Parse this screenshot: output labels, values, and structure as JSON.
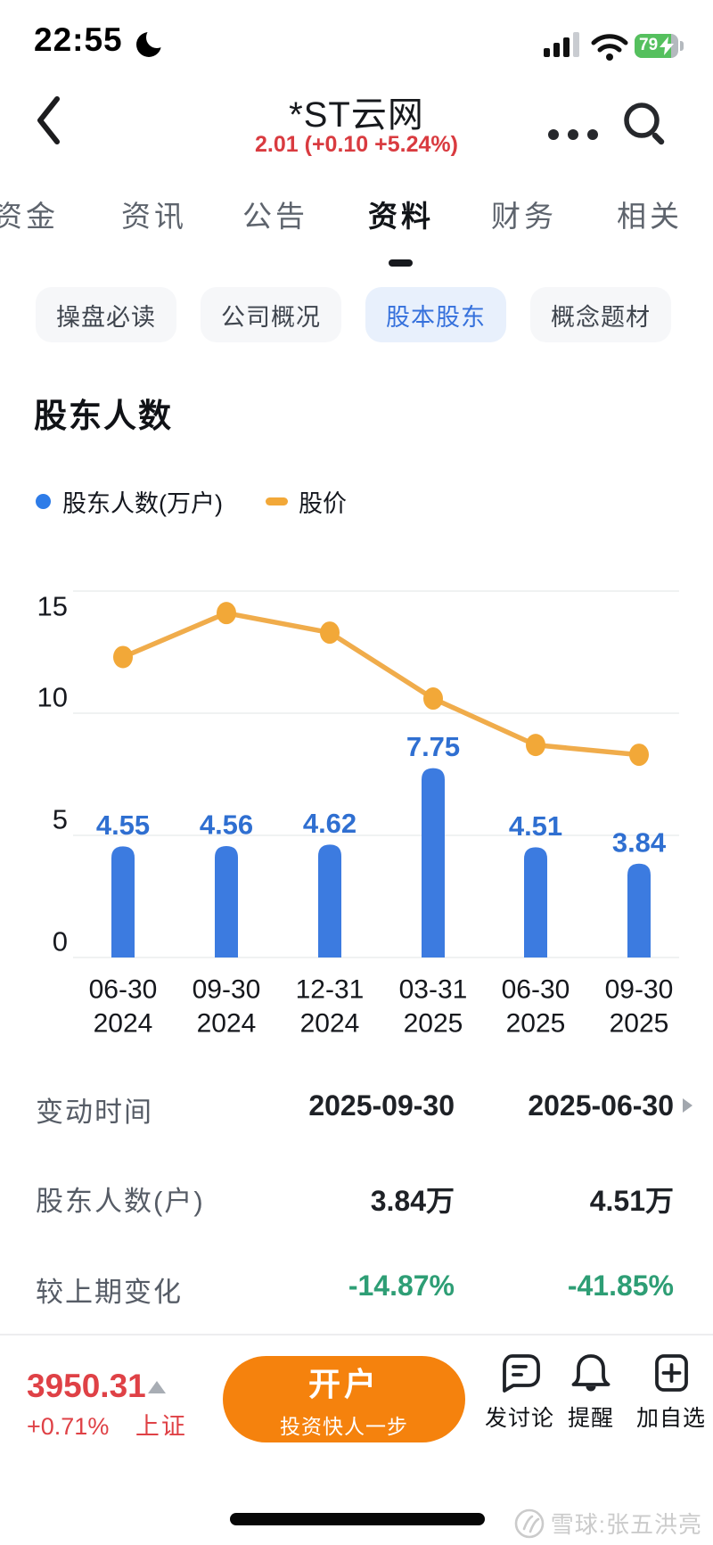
{
  "status_bar": {
    "time": "22:55",
    "battery": "79"
  },
  "header": {
    "title": "*ST云网",
    "quote": "2.01 (+0.10 +5.24%)"
  },
  "tabs": {
    "items": [
      {
        "label": "资金"
      },
      {
        "label": "资讯"
      },
      {
        "label": "公告"
      },
      {
        "label": "资料"
      },
      {
        "label": "财务"
      },
      {
        "label": "相关"
      }
    ],
    "active": "资料"
  },
  "subtabs": {
    "items": [
      {
        "label": "操盘必读"
      },
      {
        "label": "公司概况"
      },
      {
        "label": "股本股东"
      },
      {
        "label": "概念题材"
      }
    ],
    "active": "股本股东"
  },
  "section_title": "股东人数",
  "chart_data": {
    "type": "bar",
    "title": "股东人数",
    "categories": [
      "06-30 2024",
      "09-30 2024",
      "12-31 2024",
      "03-31 2025",
      "06-30 2025",
      "09-30 2025"
    ],
    "categories_lines": [
      [
        "06-30",
        "2024"
      ],
      [
        "09-30",
        "2024"
      ],
      [
        "12-31",
        "2024"
      ],
      [
        "03-31",
        "2025"
      ],
      [
        "06-30",
        "2025"
      ],
      [
        "09-30",
        "2025"
      ]
    ],
    "series": [
      {
        "name": "股东人数(万户)",
        "type": "bar",
        "values": [
          4.55,
          4.56,
          4.62,
          7.75,
          4.51,
          3.84
        ],
        "color": "#3C7BE0",
        "label_color": "#2F6FD1"
      },
      {
        "name": "股价",
        "type": "line",
        "values": [
          12.3,
          14.1,
          13.3,
          10.6,
          8.7,
          8.3
        ],
        "color": "#F0AC4B",
        "point_color": "#F2A838"
      }
    ],
    "ylim": [
      0,
      15
    ],
    "yticks": [
      0,
      5,
      10,
      15
    ],
    "grid": true,
    "legend_position": "top-left"
  },
  "table": {
    "rows": [
      {
        "label": "变动时间",
        "values": [
          "2025-09-30",
          "2025-06-30"
        ]
      },
      {
        "label": "股东人数(户)",
        "values": [
          "3.84万",
          "4.51万"
        ]
      },
      {
        "label": "较上期变化",
        "values": [
          "-14.87%",
          "-41.85%"
        ]
      }
    ]
  },
  "bottom_bar": {
    "index": {
      "value": "3950.31",
      "change": "+0.71%",
      "name": "上证"
    },
    "cta": {
      "title": "开户",
      "subtitle": "投资快人一步"
    },
    "actions": [
      {
        "label": "发讨论"
      },
      {
        "label": "提醒"
      },
      {
        "label": "加自选"
      }
    ]
  },
  "watermark": {
    "text": "雪球:张五洪亮"
  },
  "colors": {
    "red": "#DF4146",
    "green": "#2E9E75",
    "bar_blue": "#3C7BE0",
    "line_orange": "#F0AC4B",
    "cta_orange": "#F5820D",
    "active_blue": "#3671DC",
    "battery_green": "#55C05E"
  }
}
